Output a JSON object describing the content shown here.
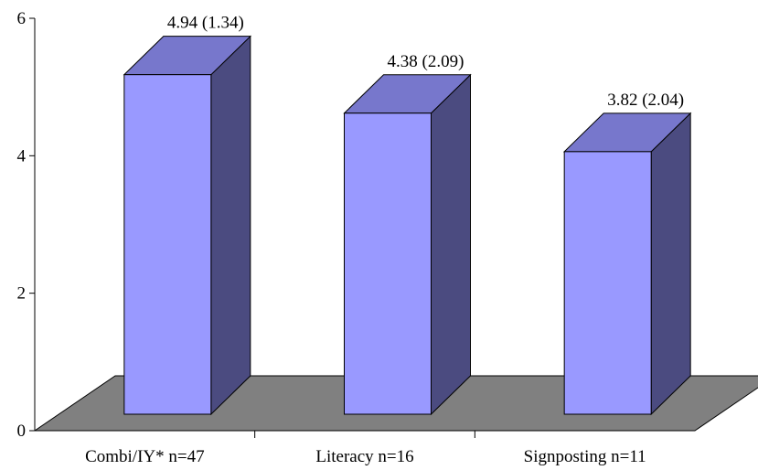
{
  "chart_data": {
    "type": "bar",
    "style": "3d-column",
    "title": "",
    "xlabel": "",
    "ylabel": "",
    "categories": [
      "Combi/IY* n=47",
      "Literacy n=16",
      "Signposting n=11"
    ],
    "values": [
      4.94,
      4.38,
      3.82
    ],
    "data_labels": [
      "4.94 (1.34)",
      "4.38 (2.09)",
      "3.82 (2.04)"
    ],
    "ylim": [
      0,
      6
    ],
    "yticks": [
      "0",
      "2",
      "4",
      "6"
    ],
    "grid": false,
    "legend": "none",
    "colors": {
      "bar_front": "#9999FF",
      "bar_top": "#7777CC",
      "bar_side": "#4B4B80",
      "floor": "#808080",
      "outline": "#000000"
    }
  }
}
